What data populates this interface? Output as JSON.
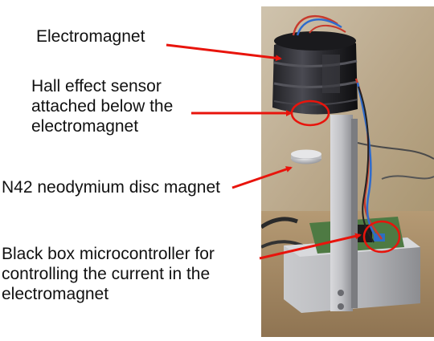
{
  "annotations": {
    "electromagnet": "Electromagnet",
    "hall_sensor": "Hall effect sensor\nattached below the\nelectromagnet",
    "disc_magnet": "N42 neodymium disc magnet",
    "microcontroller": "Black box microcontroller for\ncontrolling the current in the\nelectromagnet"
  },
  "colors": {
    "arrow": "#e8140c",
    "text": "#111111",
    "background": "#ffffff"
  }
}
